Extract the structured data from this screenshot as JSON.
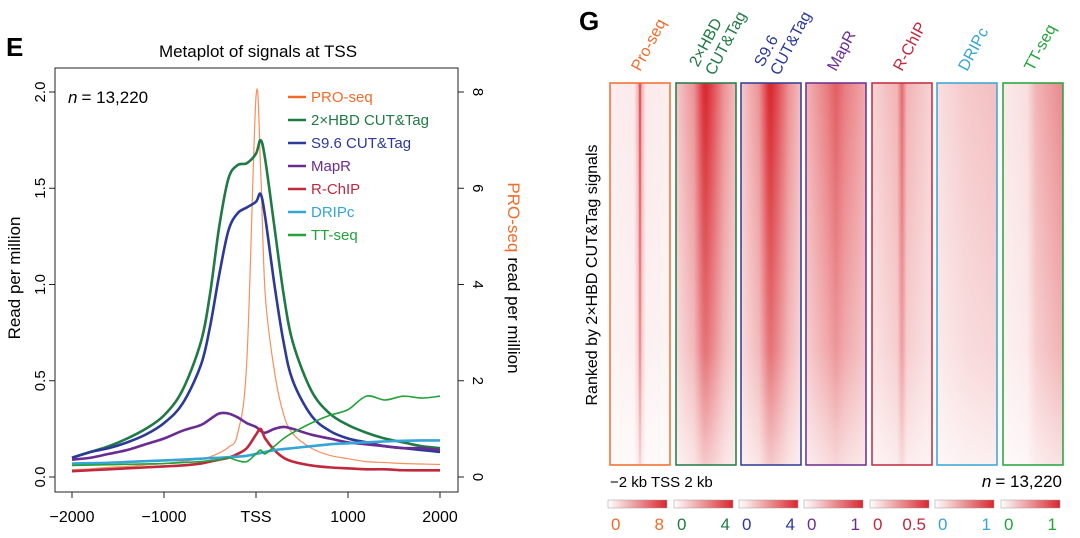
{
  "panel_e": {
    "letter": "E",
    "title": "Metaplot of signals at TSS",
    "n_label": "= 13,220",
    "n_italic": "n"
  },
  "panel_g": {
    "letter": "G",
    "ylabel": "Ranked by 2×HBD CUT&Tag signals",
    "x_axis_label": "−2 kb TSS 2 kb",
    "n_label": "= 13,220",
    "n_italic": "n"
  },
  "chart_data": [
    {
      "type": "line",
      "title": "Metaplot of signals at TSS",
      "xlabel": "",
      "ylabel": "Read per million",
      "ylabel_right": "read per million",
      "ylabel_right_prefix": "PRO-seq",
      "xlim": [
        -2000,
        2000
      ],
      "ylim": [
        0,
        2.0
      ],
      "ylim_right": [
        0,
        8
      ],
      "x_ticks": [
        -2000,
        -1000,
        0,
        1000,
        2000
      ],
      "x_tick_labels": [
        "−2000",
        "−1000",
        "TSS",
        "1000",
        "2000"
      ],
      "y_ticks": [
        0.0,
        0.5,
        1.0,
        1.5,
        2.0
      ],
      "y_tick_labels": [
        "0.0",
        "0.5",
        "1.0",
        "1.5",
        "2.0"
      ],
      "y_right_ticks": [
        0,
        2,
        4,
        6,
        8
      ],
      "y_right_tick_labels": [
        "0",
        "2",
        "4",
        "6",
        "8"
      ],
      "legend_position": "top-right",
      "grid": false,
      "x": [
        -2000,
        -1800,
        -1600,
        -1400,
        -1200,
        -1000,
        -800,
        -600,
        -500,
        -400,
        -300,
        -200,
        -100,
        0,
        50,
        100,
        200,
        300,
        400,
        600,
        800,
        1000,
        1200,
        1400,
        1600,
        1800,
        2000
      ],
      "series": [
        {
          "name": "PRO-seq",
          "color": "#f26b2a",
          "axis": "right",
          "width": 1.2,
          "values": [
            0.15,
            0.17,
            0.2,
            0.22,
            0.25,
            0.28,
            0.32,
            0.38,
            0.42,
            0.5,
            0.62,
            0.9,
            2.4,
            7.9,
            6.4,
            3.8,
            2.2,
            1.3,
            0.9,
            0.6,
            0.45,
            0.38,
            0.32,
            0.3,
            0.28,
            0.27,
            0.26
          ]
        },
        {
          "name": "2×HBD CUT&Tag",
          "color": "#1f7a45",
          "axis": "left",
          "width": 2.6,
          "values": [
            0.1,
            0.13,
            0.16,
            0.2,
            0.25,
            0.32,
            0.45,
            0.7,
            0.95,
            1.3,
            1.55,
            1.62,
            1.63,
            1.68,
            1.75,
            1.65,
            1.3,
            0.95,
            0.7,
            0.45,
            0.33,
            0.27,
            0.23,
            0.2,
            0.18,
            0.16,
            0.15
          ]
        },
        {
          "name": "S9.6 CUT&Tag",
          "color": "#2b3a98",
          "axis": "left",
          "width": 2.6,
          "values": [
            0.1,
            0.13,
            0.15,
            0.18,
            0.22,
            0.28,
            0.38,
            0.58,
            0.78,
            1.05,
            1.28,
            1.37,
            1.4,
            1.43,
            1.47,
            1.35,
            1.0,
            0.7,
            0.5,
            0.32,
            0.24,
            0.2,
            0.18,
            0.16,
            0.15,
            0.14,
            0.13
          ]
        },
        {
          "name": "MapR",
          "color": "#6a2c91",
          "axis": "left",
          "width": 2.6,
          "values": [
            0.09,
            0.1,
            0.12,
            0.14,
            0.17,
            0.2,
            0.24,
            0.27,
            0.3,
            0.33,
            0.33,
            0.31,
            0.28,
            0.26,
            0.24,
            0.23,
            0.25,
            0.26,
            0.25,
            0.22,
            0.2,
            0.18,
            0.17,
            0.16,
            0.15,
            0.15,
            0.14
          ]
        },
        {
          "name": "R-ChIP",
          "color": "#c0283c",
          "axis": "left",
          "width": 2.6,
          "values": [
            0.03,
            0.035,
            0.04,
            0.045,
            0.05,
            0.055,
            0.06,
            0.07,
            0.08,
            0.09,
            0.1,
            0.12,
            0.15,
            0.22,
            0.25,
            0.2,
            0.14,
            0.1,
            0.08,
            0.06,
            0.05,
            0.045,
            0.04,
            0.04,
            0.035,
            0.035,
            0.035
          ]
        },
        {
          "name": "DRIPc",
          "color": "#35a4d6",
          "axis": "left",
          "width": 2.6,
          "values": [
            0.07,
            0.072,
            0.074,
            0.078,
            0.082,
            0.086,
            0.09,
            0.095,
            0.098,
            0.1,
            0.103,
            0.106,
            0.11,
            0.12,
            0.125,
            0.13,
            0.14,
            0.145,
            0.15,
            0.16,
            0.17,
            0.175,
            0.18,
            0.185,
            0.188,
            0.19,
            0.19
          ]
        },
        {
          "name": "TT-seq",
          "color": "#22a33a",
          "axis": "left",
          "width": 1.6,
          "values": [
            0.06,
            0.062,
            0.064,
            0.066,
            0.068,
            0.07,
            0.075,
            0.08,
            0.085,
            0.09,
            0.1,
            0.085,
            0.08,
            0.12,
            0.14,
            0.12,
            0.16,
            0.2,
            0.23,
            0.28,
            0.32,
            0.35,
            0.42,
            0.4,
            0.42,
            0.41,
            0.42
          ]
        }
      ]
    },
    {
      "type": "heatmap",
      "title": "",
      "rows": 13220,
      "columns": [
        {
          "name": "Pro-seq",
          "color": "#f26b2a",
          "scale": [
            0,
            8
          ],
          "peak": "sharp"
        },
        {
          "name": "2×HBD\nCUT&Tag",
          "color": "#1f7a45",
          "scale": [
            0,
            4
          ],
          "peak": "strong"
        },
        {
          "name": "S9.6\nCUT&Tag",
          "color": "#2b3a98",
          "scale": [
            0,
            4
          ],
          "peak": "strong"
        },
        {
          "name": "MapR",
          "color": "#6a2c91",
          "scale": [
            0,
            1
          ],
          "peak": "broad"
        },
        {
          "name": "R-ChIP",
          "color": "#c0283c",
          "scale": [
            0,
            0.5
          ],
          "peak": "medium"
        },
        {
          "name": "DRIPc",
          "color": "#35a4d6",
          "scale": [
            0,
            1
          ],
          "peak": "weak"
        },
        {
          "name": "TT-seq",
          "color": "#22a33a",
          "scale": [
            0,
            1
          ],
          "peak": "right"
        }
      ],
      "scale_labels": [
        [
          "0",
          "8"
        ],
        [
          "0",
          "4"
        ],
        [
          "0",
          "4"
        ],
        [
          "0",
          "1"
        ],
        [
          "0",
          "0.5"
        ],
        [
          "0",
          "1"
        ],
        [
          "0",
          "1"
        ]
      ]
    }
  ]
}
